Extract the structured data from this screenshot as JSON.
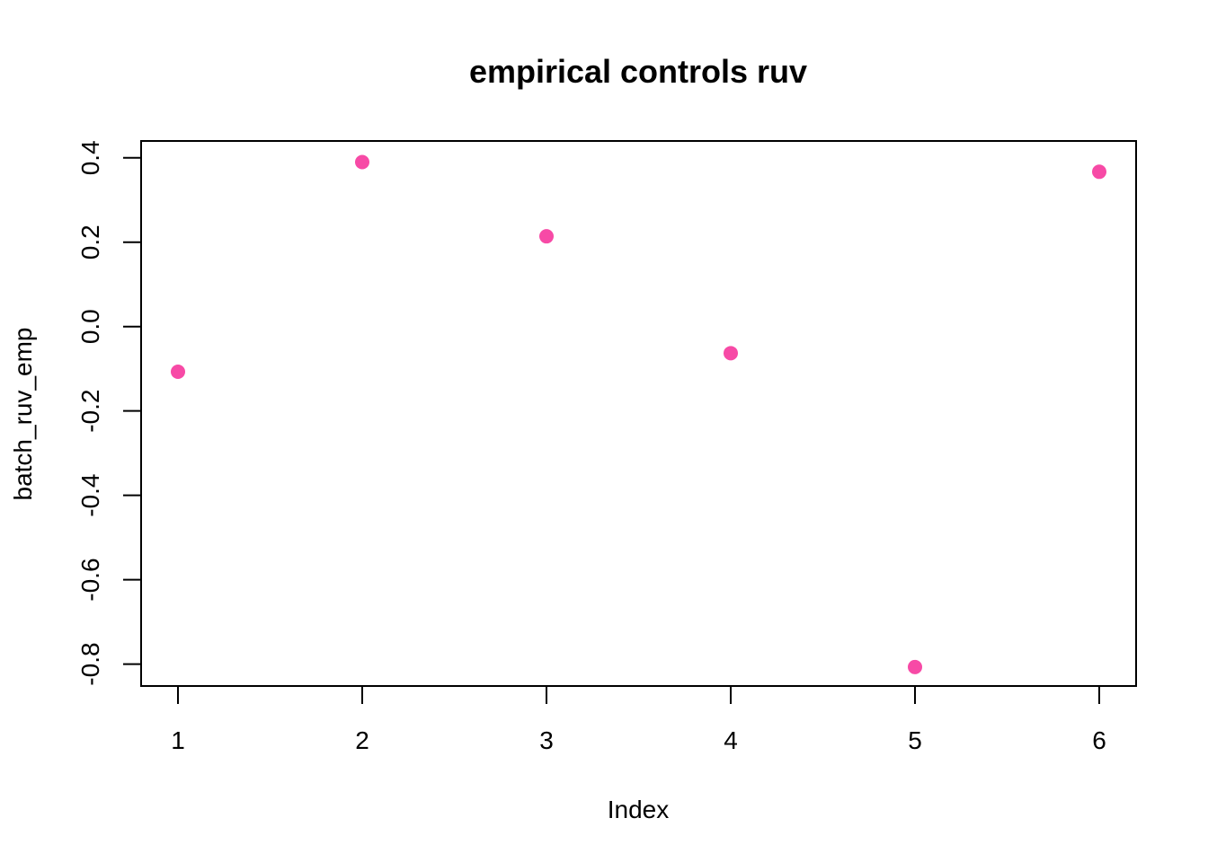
{
  "chart_data": {
    "type": "scatter",
    "title": "empirical controls ruv",
    "xlabel": "Index",
    "ylabel": "batch_ruv_emp",
    "x": [
      1,
      2,
      3,
      4,
      5,
      6
    ],
    "series": [
      {
        "values": [
          -0.107,
          0.39,
          0.214,
          -0.063,
          -0.807,
          0.367
        ]
      }
    ],
    "xticks": [
      1,
      2,
      3,
      4,
      5,
      6
    ],
    "xtick_labels": [
      "1",
      "2",
      "3",
      "4",
      "5",
      "6"
    ],
    "yticks": [
      -0.8,
      -0.6,
      -0.4,
      -0.2,
      0.0,
      0.2,
      0.4
    ],
    "ytick_labels": [
      "-0.8",
      "-0.6",
      "-0.4",
      "-0.2",
      "0.0",
      "0.2",
      "0.4"
    ],
    "xlim": [
      0.8,
      6.2
    ],
    "ylim": [
      -0.852,
      0.44
    ],
    "grid": false,
    "point_color": "#F74AA6"
  }
}
